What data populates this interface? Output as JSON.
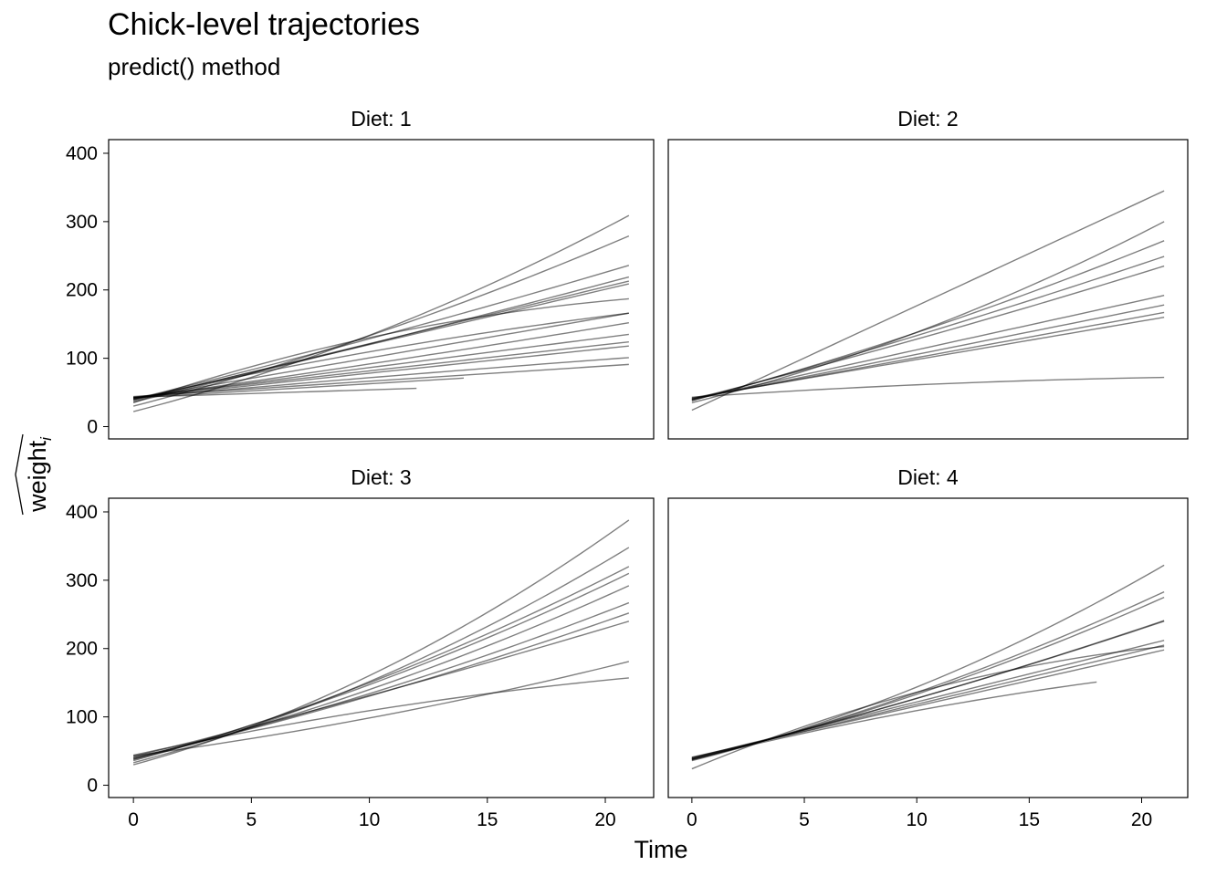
{
  "chart_data": {
    "type": "line",
    "title": "Chick-level trajectories",
    "subtitle": "predict() method",
    "xlabel": "Time",
    "ylabel_base": "weight",
    "ylabel_subscript": "i",
    "xlim": [
      -1.05,
      22.05
    ],
    "ylim": [
      -18,
      420
    ],
    "xticks": [
      0,
      5,
      10,
      15,
      20
    ],
    "yticks": [
      0,
      100,
      200,
      300,
      400
    ],
    "grid": false,
    "line_color": "#000000",
    "line_opacity": 0.5,
    "facets": [
      {
        "label": "Diet: 1",
        "series": [
          {
            "x": [
              0,
              21
            ],
            "y": [
              22,
              309
            ],
            "c": 0.35
          },
          {
            "x": [
              0,
              21
            ],
            "y": [
              30,
              279
            ],
            "c": 0.25
          },
          {
            "x": [
              0,
              21
            ],
            "y": [
              40,
              236
            ],
            "c": 0.1
          },
          {
            "x": [
              0,
              21
            ],
            "y": [
              36,
              219
            ],
            "c": 0.05
          },
          {
            "x": [
              0,
              21
            ],
            "y": [
              38,
              213
            ],
            "c": 0
          },
          {
            "x": [
              0,
              21
            ],
            "y": [
              39,
              209
            ],
            "c": 0
          },
          {
            "x": [
              0,
              21
            ],
            "y": [
              35,
              187
            ],
            "c": -0.6
          },
          {
            "x": [
              0,
              21
            ],
            "y": [
              40,
              166
            ],
            "c": -0.3
          },
          {
            "x": [
              0,
              21
            ],
            "y": [
              41,
              166
            ],
            "c": 0
          },
          {
            "x": [
              0,
              21
            ],
            "y": [
              42,
              152
            ],
            "c": 0.1
          },
          {
            "x": [
              0,
              21
            ],
            "y": [
              42,
              135
            ],
            "c": 0
          },
          {
            "x": [
              0,
              21
            ],
            "y": [
              43,
              124
            ],
            "c": 0
          },
          {
            "x": [
              0,
              21
            ],
            "y": [
              42,
              118
            ],
            "c": 0
          },
          {
            "x": [
              0,
              21
            ],
            "y": [
              42,
              101
            ],
            "c": -0.1
          },
          {
            "x": [
              0,
              21
            ],
            "y": [
              44,
              91
            ],
            "c": 0
          },
          {
            "x": [
              0,
              14
            ],
            "y": [
              42,
              71
            ],
            "c": 0
          },
          {
            "x": [
              0,
              12
            ],
            "y": [
              43,
              56
            ],
            "c": 0
          }
        ]
      },
      {
        "label": "Diet: 2",
        "series": [
          {
            "x": [
              0,
              21
            ],
            "y": [
              24,
              345
            ],
            "c": 0
          },
          {
            "x": [
              0,
              21
            ],
            "y": [
              35,
              300
            ],
            "c": 0.35
          },
          {
            "x": [
              0,
              21
            ],
            "y": [
              38,
              272
            ],
            "c": 0.2
          },
          {
            "x": [
              0,
              21
            ],
            "y": [
              38,
              249
            ],
            "c": 0.1
          },
          {
            "x": [
              0,
              21
            ],
            "y": [
              40,
              235
            ],
            "c": 0.1
          },
          {
            "x": [
              0,
              21
            ],
            "y": [
              40,
              192
            ],
            "c": 0
          },
          {
            "x": [
              0,
              21
            ],
            "y": [
              40,
              178
            ],
            "c": 0
          },
          {
            "x": [
              0,
              21
            ],
            "y": [
              41,
              167
            ],
            "c": 0
          },
          {
            "x": [
              0,
              21
            ],
            "y": [
              42,
              160
            ],
            "c": 0
          },
          {
            "x": [
              0,
              21
            ],
            "y": [
              43,
              72
            ],
            "c": -0.6
          }
        ]
      },
      {
        "label": "Diet: 3",
        "series": [
          {
            "x": [
              0,
              21
            ],
            "y": [
              30,
              388
            ],
            "c": 0.45
          },
          {
            "x": [
              0,
              21
            ],
            "y": [
              33,
              348
            ],
            "c": 0.4
          },
          {
            "x": [
              0,
              21
            ],
            "y": [
              36,
              320
            ],
            "c": 0.3
          },
          {
            "x": [
              0,
              21
            ],
            "y": [
              38,
              310
            ],
            "c": 0.3
          },
          {
            "x": [
              0,
              21
            ],
            "y": [
              38,
              292
            ],
            "c": 0.3
          },
          {
            "x": [
              0,
              21
            ],
            "y": [
              40,
              267
            ],
            "c": 0.25
          },
          {
            "x": [
              0,
              21
            ],
            "y": [
              40,
              252
            ],
            "c": 0.2
          },
          {
            "x": [
              0,
              21
            ],
            "y": [
              42,
              240
            ],
            "c": 0.1
          },
          {
            "x": [
              0,
              21
            ],
            "y": [
              43,
              181
            ],
            "c": 0.3
          },
          {
            "x": [
              0,
              21
            ],
            "y": [
              44,
              157
            ],
            "c": -0.4
          }
        ]
      },
      {
        "label": "Diet: 4",
        "series": [
          {
            "x": [
              0,
              21
            ],
            "y": [
              36,
              322
            ],
            "c": 0.4
          },
          {
            "x": [
              0,
              21
            ],
            "y": [
              37,
              283
            ],
            "c": 0.3
          },
          {
            "x": [
              0,
              21
            ],
            "y": [
              38,
              275
            ],
            "c": 0.3
          },
          {
            "x": [
              0,
              21
            ],
            "y": [
              38,
              241
            ],
            "c": 0.15
          },
          {
            "x": [
              0,
              21
            ],
            "y": [
              39,
              240
            ],
            "c": 0.15
          },
          {
            "x": [
              0,
              21
            ],
            "y": [
              40,
              212
            ],
            "c": 0
          },
          {
            "x": [
              0,
              21
            ],
            "y": [
              40,
              205
            ],
            "c": 0
          },
          {
            "x": [
              0,
              21
            ],
            "y": [
              41,
              198
            ],
            "c": 0
          },
          {
            "x": [
              0,
              21
            ],
            "y": [
              24,
              203
            ],
            "c": -0.6
          },
          {
            "x": [
              0,
              18
            ],
            "y": [
              38,
              151
            ],
            "c": -0.3
          }
        ]
      }
    ]
  }
}
